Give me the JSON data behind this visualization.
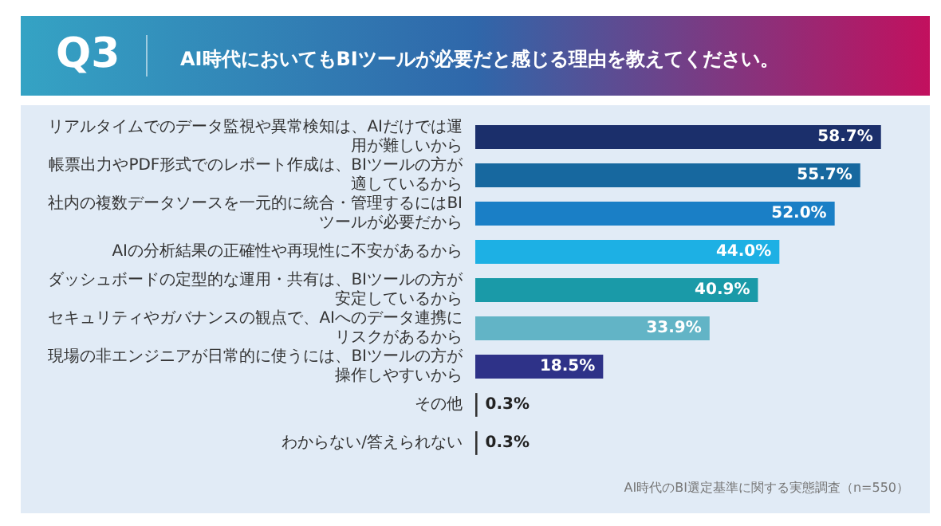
{
  "chart_data": {
    "type": "bar",
    "orientation": "horizontal",
    "title": "AI時代においてもBIツールが必要だと感じる理由を教えてください。",
    "subtitle": "Q3",
    "categories": [
      "リアルタイムでのデータ監視や異常検知は、AIだけでは運用が難しいから",
      "帳票出力やPDF形式でのレポート作成は、BIツールの方が適しているから",
      "社内の複数データソースを一元的に統合・管理するにはBIツールが必要だから",
      "AIの分析結果の正確性や再現性に不安があるから",
      "ダッシュボードの定型的な運用・共有は、BIツールの方が安定しているから",
      "セキュリティやガバナンスの観点で、AIへのデータ連携にリスクがあるから",
      "現場の非エンジニアが日常的に使うには、BIツールの方が操作しやすいから",
      "その他",
      "わからない/答えられない"
    ],
    "values": [
      58.7,
      55.7,
      52.0,
      44.0,
      40.9,
      33.9,
      18.5,
      0.3,
      0.3
    ],
    "value_labels": [
      "58.7%",
      "55.7%",
      "52.0%",
      "44.0%",
      "40.9%",
      "33.9%",
      "18.5%",
      "0.3%",
      "0.3%"
    ],
    "colors": [
      "#1b2f6b",
      "#17689f",
      "#1a7fc6",
      "#1db0e4",
      "#1a9aa8",
      "#62b4c6",
      "#2e3288",
      "#333333",
      "#333333"
    ],
    "annotations": [
      "AI時代のBI選定基準に関する実態調査（n=550）"
    ]
  }
}
